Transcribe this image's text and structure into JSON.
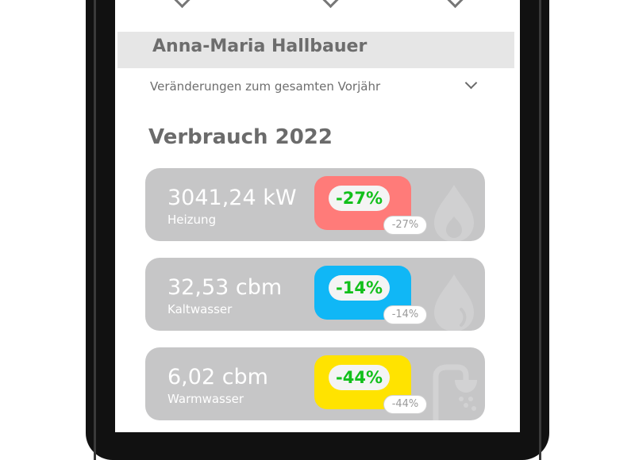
{
  "user": {
    "name": "Anna-Maria Hallbauer"
  },
  "comparison": {
    "label": "Veränderungen zum gesamten Vorjähr"
  },
  "section": {
    "title": "Verbrauch 2022"
  },
  "colors": {
    "heating": "#ff7b79",
    "cold_water": "#10b7f6",
    "warm_water": "#ffe300",
    "card_bg": "#c6c6c7",
    "positive_change": "#12c01b"
  },
  "cards": [
    {
      "value": "3041,24 kW",
      "label": "Heizung",
      "change": "-27%",
      "prev_change": "-27%",
      "icon": "fire-drop-icon"
    },
    {
      "value": "32,53 cbm",
      "label": "Kaltwasser",
      "change": "-14%",
      "prev_change": "-14%",
      "icon": "water-drop-icon"
    },
    {
      "value": "6,02 cbm",
      "label": "Warmwasser",
      "change": "-44%",
      "prev_change": "-44%",
      "icon": "shower-icon"
    }
  ]
}
